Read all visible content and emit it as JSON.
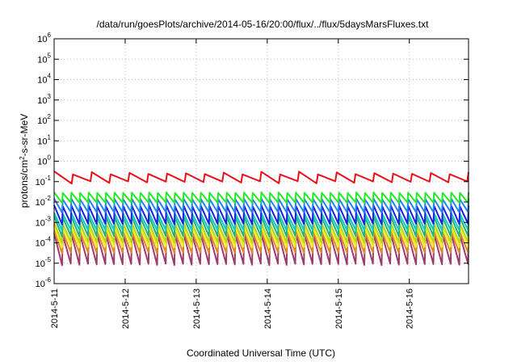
{
  "chart_data": {
    "type": "line",
    "title": "/data/run/goesPlots/archive/2014-05-16/20:00/flux/../flux/5daysMarsFluxes.txt",
    "xlabel": "Coordinated Universal Time (UTC)",
    "ylabel": "protons/cm²-s-sr-MeV",
    "ylabel_parts": {
      "pre": "protons/cm",
      "sup": "2",
      "post": "-s-sr-MeV"
    },
    "yscale": "log",
    "ylim": [
      1e-06,
      1000000.0
    ],
    "y_ticks": [
      {
        "base": "10",
        "exp": "-6"
      },
      {
        "base": "10",
        "exp": "-5"
      },
      {
        "base": "10",
        "exp": "-4"
      },
      {
        "base": "10",
        "exp": "-3"
      },
      {
        "base": "10",
        "exp": "-2"
      },
      {
        "base": "10",
        "exp": "-1"
      },
      {
        "base": "10",
        "exp": "0"
      },
      {
        "base": "10",
        "exp": "1"
      },
      {
        "base": "10",
        "exp": "2"
      },
      {
        "base": "10",
        "exp": "3"
      },
      {
        "base": "10",
        "exp": "4"
      },
      {
        "base": "10",
        "exp": "5"
      },
      {
        "base": "10",
        "exp": "6"
      }
    ],
    "x_ticks": [
      "2014-5-11",
      "2014-5-12",
      "2014-5-13",
      "2014-5-14",
      "2014-5-15",
      "2014-5-16"
    ],
    "xlim": [
      "2014-05-11 00:00",
      "2014-05-16 20:00"
    ],
    "grid": true,
    "legend": "none",
    "series": [
      {
        "color": "#e8101a",
        "low": 0.08,
        "high": 0.32,
        "teeth": 22,
        "tone": 0.65
      },
      {
        "color": "#28e828",
        "low": 0.009,
        "high": 0.03,
        "teeth": 48,
        "tone": 0.15
      },
      {
        "color": "#1f86ee",
        "low": 0.003,
        "high": 0.015,
        "teeth": 48,
        "tone": 0.15
      },
      {
        "color": "#1b1fe0",
        "low": 0.0008,
        "high": 0.007,
        "teeth": 48,
        "tone": 0.15
      },
      {
        "color": "#16c8c0",
        "low": 0.0004,
        "high": 0.003,
        "teeth": 48,
        "tone": 0.15
      },
      {
        "color": "#22b27a",
        "low": 0.0002,
        "high": 0.002,
        "teeth": 48,
        "tone": 0.15
      },
      {
        "color": "#b8d818",
        "low": 0.0001,
        "high": 0.001,
        "teeth": 48,
        "tone": 0.15
      },
      {
        "color": "#f2ee1a",
        "low": 6e-05,
        "high": 0.0007,
        "teeth": 48,
        "tone": 0.15
      },
      {
        "color": "#e08a30",
        "low": 3e-05,
        "high": 0.0004,
        "teeth": 48,
        "tone": 0.15
      },
      {
        "color": "#a03a6c",
        "low": 8e-06,
        "high": 0.0003,
        "teeth": 48,
        "tone": 0.15
      }
    ]
  }
}
